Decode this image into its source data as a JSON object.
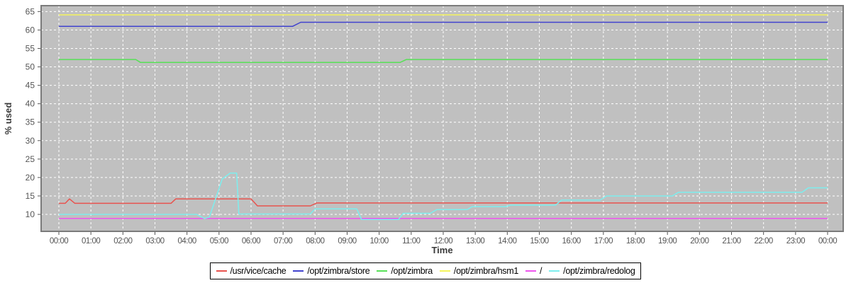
{
  "chart_data": {
    "type": "line",
    "title": "",
    "xlabel": "Time",
    "ylabel": "% used",
    "grid": true,
    "legend_position": "bottom",
    "plot_bg_color": "#c0c0c0",
    "grid_color": "#ffffff",
    "border_color": "#7b7b7b",
    "tick_label_color": "#555555",
    "axis_title_color": "#3a3a3a",
    "ylim": [
      5.4,
      66.6
    ],
    "xlim_hours": [
      0,
      24
    ],
    "y_ticks": [
      10,
      15,
      20,
      25,
      30,
      35,
      40,
      45,
      50,
      55,
      60,
      65
    ],
    "x_ticks": [
      "00:00",
      "01:00",
      "02:00",
      "03:00",
      "04:00",
      "05:00",
      "06:00",
      "07:00",
      "08:00",
      "09:00",
      "10:00",
      "11:00",
      "12:00",
      "13:00",
      "14:00",
      "15:00",
      "16:00",
      "17:00",
      "18:00",
      "19:00",
      "20:00",
      "21:00",
      "22:00",
      "23:00",
      "00:00"
    ],
    "series": [
      {
        "name": "/usr/vice/cache",
        "color": "#e8534e",
        "points": [
          [
            0,
            13
          ],
          [
            0.2,
            13
          ],
          [
            0.33,
            14.2
          ],
          [
            0.5,
            13
          ],
          [
            3.5,
            13
          ],
          [
            3.65,
            14.2
          ],
          [
            6.0,
            14.2
          ],
          [
            6.2,
            12.3
          ],
          [
            7.85,
            12.3
          ],
          [
            8.05,
            13.1
          ],
          [
            24,
            13.1
          ]
        ]
      },
      {
        "name": "/opt/zimbra/store",
        "color": "#4143ce",
        "points": [
          [
            0,
            61
          ],
          [
            7.3,
            61
          ],
          [
            7.55,
            62.1
          ],
          [
            24,
            62.1
          ]
        ]
      },
      {
        "name": "/opt/zimbra",
        "color": "#57e057",
        "points": [
          [
            0,
            52
          ],
          [
            2.4,
            52
          ],
          [
            2.55,
            51.2
          ],
          [
            10.65,
            51.2
          ],
          [
            10.85,
            52
          ],
          [
            24,
            52
          ]
        ]
      },
      {
        "name": "/opt/zimbra/hsm1",
        "color": "#f4f45c",
        "points": [
          [
            0,
            64.1
          ],
          [
            24,
            64.1
          ]
        ]
      },
      {
        "name": "/",
        "color": "#ee55ee",
        "points": [
          [
            0,
            8.9
          ],
          [
            24,
            8.9
          ]
        ]
      },
      {
        "name": "/opt/zimbra/redolog",
        "color": "#7deeee",
        "points": [
          [
            0,
            10
          ],
          [
            4.3,
            10
          ],
          [
            4.55,
            8.9
          ],
          [
            4.7,
            9.3
          ],
          [
            5.1,
            19.6
          ],
          [
            5.35,
            21.2
          ],
          [
            5.55,
            21.2
          ],
          [
            5.62,
            10.1
          ],
          [
            7.85,
            10.1
          ],
          [
            8.0,
            11.5
          ],
          [
            9.3,
            11.5
          ],
          [
            9.45,
            8.6
          ],
          [
            10.6,
            8.6
          ],
          [
            10.75,
            10.3
          ],
          [
            11.6,
            10.3
          ],
          [
            11.8,
            11.3
          ],
          [
            12.75,
            11.3
          ],
          [
            12.9,
            12.1
          ],
          [
            13.95,
            12.1
          ],
          [
            14.1,
            12.5
          ],
          [
            15.5,
            12.5
          ],
          [
            15.7,
            13.9
          ],
          [
            16.9,
            13.9
          ],
          [
            17.1,
            15.0
          ],
          [
            19.15,
            15.0
          ],
          [
            19.35,
            16.0
          ],
          [
            23.2,
            16.0
          ],
          [
            23.4,
            17.2
          ],
          [
            24,
            17.2
          ]
        ]
      }
    ]
  },
  "legend": {
    "items": [
      {
        "label": "/usr/vice/cache",
        "color": "#e8534e"
      },
      {
        "label": "/opt/zimbra/store",
        "color": "#4143ce"
      },
      {
        "label": "/opt/zimbra",
        "color": "#57e057"
      },
      {
        "label": "/opt/zimbra/hsm1",
        "color": "#f4f45c"
      },
      {
        "label": "/",
        "color": "#ee55ee"
      },
      {
        "label": "/opt/zimbra/redolog",
        "color": "#7deeee"
      }
    ]
  }
}
